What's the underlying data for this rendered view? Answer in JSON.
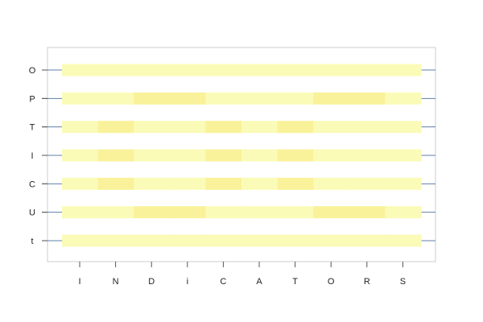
{
  "chart_data": {
    "type": "heatmap",
    "title": "",
    "xlabel": "",
    "ylabel": "",
    "x_categories": [
      "I",
      "N",
      "D",
      "i",
      "C",
      "A",
      "T",
      "O",
      "R",
      "S"
    ],
    "y_categories": [
      "O",
      "P",
      "T",
      "I",
      "C",
      "U",
      "t"
    ],
    "grid": false,
    "colors": {
      "low": "#fbfbb8",
      "high": "#f9f29a",
      "row_line": "#5f7fa8",
      "frame": "#cccccc"
    },
    "values": [
      [
        0,
        0,
        0,
        0,
        0,
        0,
        0,
        0,
        0,
        0
      ],
      [
        0,
        0,
        1,
        1,
        0,
        0,
        0,
        1,
        1,
        0
      ],
      [
        0,
        1,
        0,
        0,
        1,
        0,
        1,
        0,
        0,
        0
      ],
      [
        0,
        1,
        0,
        0,
        1,
        0,
        1,
        0,
        0,
        0
      ],
      [
        0,
        1,
        0,
        0,
        1,
        0,
        1,
        0,
        0,
        0
      ],
      [
        0,
        0,
        1,
        1,
        0,
        0,
        0,
        1,
        1,
        0
      ],
      [
        0,
        0,
        0,
        0,
        0,
        0,
        0,
        0,
        0,
        0
      ]
    ]
  }
}
